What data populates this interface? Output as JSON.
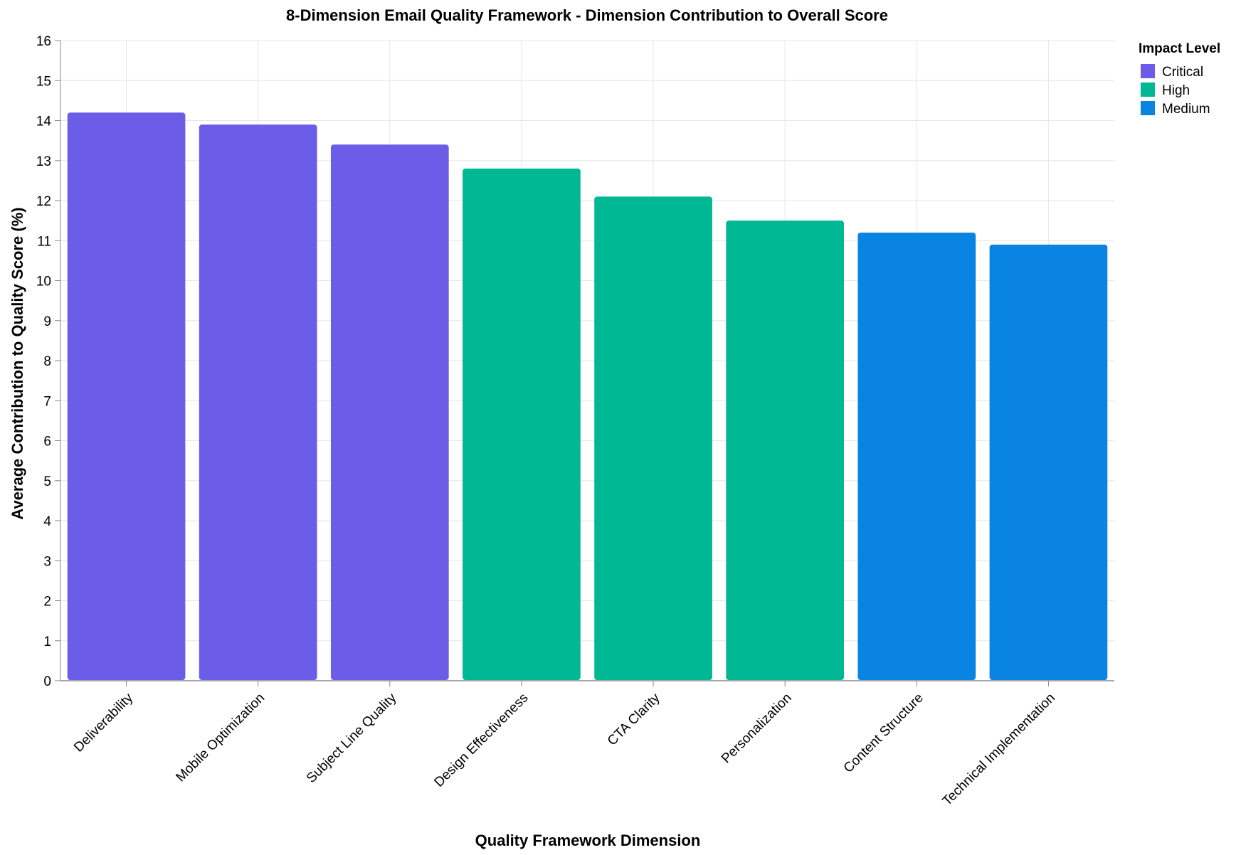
{
  "chart_data": {
    "type": "bar",
    "title": "8-Dimension Email Quality Framework - Dimension Contribution to Overall Score",
    "xlabel": "Quality Framework Dimension",
    "ylabel": "Average Contribution to Quality Score (%)",
    "ylim": [
      0,
      16
    ],
    "yticks": [
      0,
      1,
      2,
      3,
      4,
      5,
      6,
      7,
      8,
      9,
      10,
      11,
      12,
      13,
      14,
      15,
      16
    ],
    "grid": true,
    "legend_title": "Impact Level",
    "legend_position": "top-right",
    "legend": [
      {
        "label": "Critical",
        "color": "#6b5de7"
      },
      {
        "label": "High",
        "color": "#00b894"
      },
      {
        "label": "Medium",
        "color": "#0984e3"
      }
    ],
    "categories": [
      "Deliverability",
      "Mobile Optimization",
      "Subject Line Quality",
      "Design Effectiveness",
      "CTA Clarity",
      "Personalization",
      "Content Structure",
      "Technical Implementation"
    ],
    "values": [
      14.2,
      13.9,
      13.4,
      12.8,
      12.1,
      11.5,
      11.2,
      10.9
    ],
    "impact": [
      "Critical",
      "Critical",
      "Critical",
      "High",
      "High",
      "High",
      "Medium",
      "Medium"
    ]
  }
}
